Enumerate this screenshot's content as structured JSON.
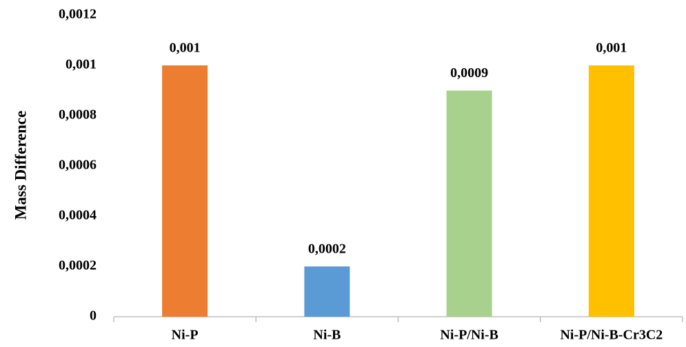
{
  "chart_data": {
    "type": "bar",
    "y_label": "Mass Difference",
    "categories": [
      "Ni-P",
      "Ni-B",
      "Ni-P/Ni-B",
      "Ni-P/Ni-B-Cr3C2"
    ],
    "values": [
      0.001,
      0.0002,
      0.0009,
      0.001
    ],
    "value_labels": [
      "0,001",
      "0,0002",
      "0,0009",
      "0,001"
    ],
    "colors": [
      "#ed7d31",
      "#5b9bd5",
      "#a9d18e",
      "#ffc000"
    ],
    "ylim": [
      0,
      0.0012
    ],
    "yticks": [
      0,
      {
        "value": 0.0002,
        "label": "0,0002"
      },
      {
        "value": 0.0004,
        "label": "0,0004"
      },
      {
        "value": 0.0006,
        "label": "0,0006"
      },
      {
        "value": 0.0008,
        "label": "0,0008"
      },
      {
        "value": 0.001,
        "label": "0,001"
      },
      {
        "value": 0.0012,
        "label": "0,0012"
      }
    ],
    "grid": false
  }
}
